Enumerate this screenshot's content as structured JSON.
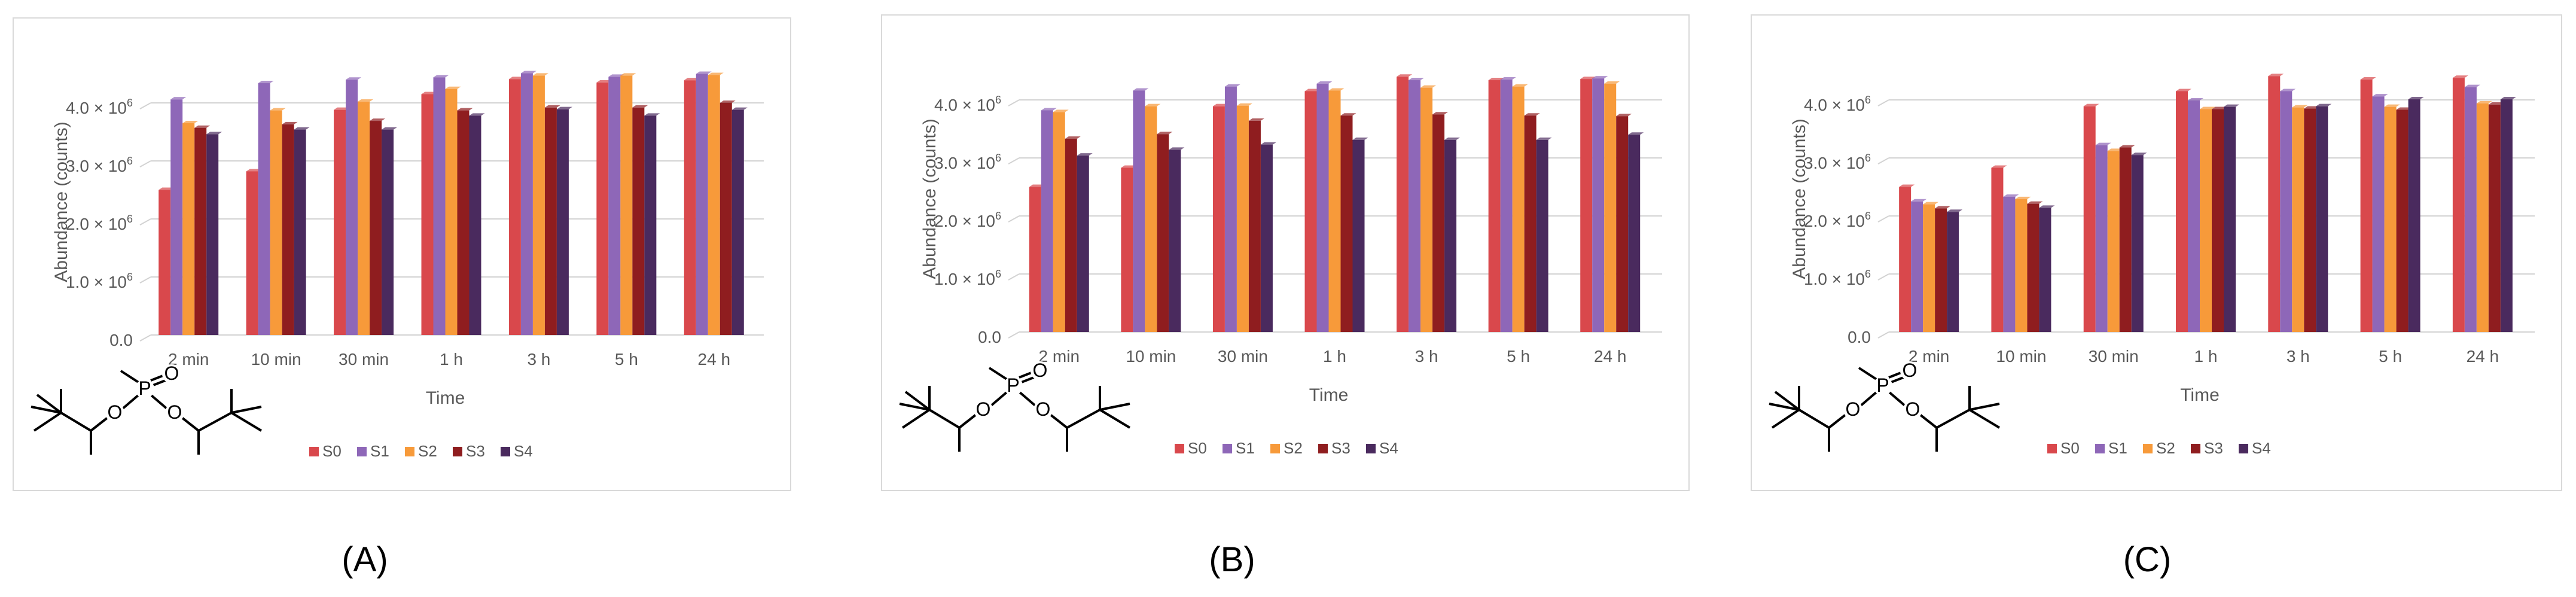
{
  "colors": {
    "S0": "#d9484c",
    "S1": "#8e67b8",
    "S2": "#f79a3a",
    "S3": "#8f1d1f",
    "S4": "#4a2a5e",
    "grid": "#d3d3d3",
    "text": "#595959",
    "frame": "#d9d9d9"
  },
  "molecule": {
    "atom_P": "P",
    "atom_O1": "O",
    "atom_O2": "O",
    "atom_O3": "O"
  },
  "chart_data": [
    {
      "type": "bar",
      "panel_label": "(A)",
      "title": "",
      "xlabel": "Time",
      "ylabel": "Abundance (counts)",
      "ylim": [
        0,
        5000000
      ],
      "ytick_values": [
        0,
        1000000,
        2000000,
        3000000,
        4000000
      ],
      "ytick_mantissas": [
        "0.0",
        "1.0",
        "2.0",
        "3.0",
        "4.0"
      ],
      "ytick_times": "×",
      "ytick_base": "10",
      "ytick_exponent": "6",
      "legend_position": "bottom",
      "categories": [
        "2 min",
        "10 min",
        "30 min",
        "1 h",
        "3 h",
        "5 h",
        "24 h"
      ],
      "series": [
        {
          "name": "S0",
          "values": [
            2500000,
            2820000,
            3880000,
            4150000,
            4410000,
            4350000,
            4390000
          ]
        },
        {
          "name": "S1",
          "values": [
            4060000,
            4340000,
            4400000,
            4440000,
            4510000,
            4450000,
            4500000
          ]
        },
        {
          "name": "S2",
          "values": [
            3650000,
            3870000,
            4020000,
            4240000,
            4470000,
            4470000,
            4480000
          ]
        },
        {
          "name": "S3",
          "values": [
            3570000,
            3630000,
            3690000,
            3870000,
            3920000,
            3920000,
            4000000
          ]
        },
        {
          "name": "S4",
          "values": [
            3460000,
            3540000,
            3540000,
            3780000,
            3890000,
            3780000,
            3880000
          ]
        }
      ]
    },
    {
      "type": "bar",
      "panel_label": "(B)",
      "title": "",
      "xlabel": "Time",
      "ylabel": "Abundance (counts)",
      "ylim": [
        0,
        5000000
      ],
      "ytick_values": [
        0,
        1000000,
        2000000,
        3000000,
        4000000
      ],
      "ytick_mantissas": [
        "0.0",
        "1.0",
        "2.0",
        "3.0",
        "4.0"
      ],
      "ytick_times": "×",
      "ytick_base": "10",
      "ytick_exponent": "6",
      "legend_position": "bottom",
      "categories": [
        "2 min",
        "10 min",
        "30 min",
        "1 h",
        "3 h",
        "5 h",
        "24 h"
      ],
      "series": [
        {
          "name": "S0",
          "values": [
            2500000,
            2830000,
            3890000,
            4150000,
            4400000,
            4340000,
            4360000
          ]
        },
        {
          "name": "S1",
          "values": [
            3820000,
            4160000,
            4230000,
            4280000,
            4340000,
            4350000,
            4370000
          ]
        },
        {
          "name": "S2",
          "values": [
            3790000,
            3890000,
            3900000,
            4160000,
            4210000,
            4230000,
            4280000
          ]
        },
        {
          "name": "S3",
          "values": [
            3330000,
            3410000,
            3640000,
            3730000,
            3750000,
            3730000,
            3720000
          ]
        },
        {
          "name": "S4",
          "values": [
            3040000,
            3140000,
            3230000,
            3310000,
            3310000,
            3310000,
            3400000
          ]
        }
      ]
    },
    {
      "type": "bar",
      "panel_label": "(C)",
      "title": "",
      "xlabel": "Time",
      "ylabel": "Abundance (counts)",
      "ylim": [
        0,
        5000000
      ],
      "ytick_values": [
        0,
        1000000,
        2000000,
        3000000,
        4000000
      ],
      "ytick_mantissas": [
        "0.0",
        "1.0",
        "2.0",
        "3.0",
        "4.0"
      ],
      "ytick_times": "×",
      "ytick_base": "10",
      "ytick_exponent": "6",
      "legend_position": "bottom",
      "categories": [
        "2 min",
        "10 min",
        "30 min",
        "1 h",
        "3 h",
        "5 h",
        "24 h"
      ],
      "series": [
        {
          "name": "S0",
          "values": [
            2500000,
            2830000,
            3890000,
            4150000,
            4410000,
            4350000,
            4380000
          ]
        },
        {
          "name": "S1",
          "values": [
            2250000,
            2330000,
            3220000,
            3990000,
            4150000,
            4060000,
            4220000
          ]
        },
        {
          "name": "S2",
          "values": [
            2200000,
            2290000,
            3120000,
            3840000,
            3870000,
            3880000,
            3940000
          ]
        },
        {
          "name": "S3",
          "values": [
            2130000,
            2210000,
            3180000,
            3840000,
            3850000,
            3830000,
            3920000
          ]
        },
        {
          "name": "S4",
          "values": [
            2070000,
            2140000,
            3050000,
            3880000,
            3890000,
            4010000,
            4010000
          ]
        }
      ]
    }
  ]
}
